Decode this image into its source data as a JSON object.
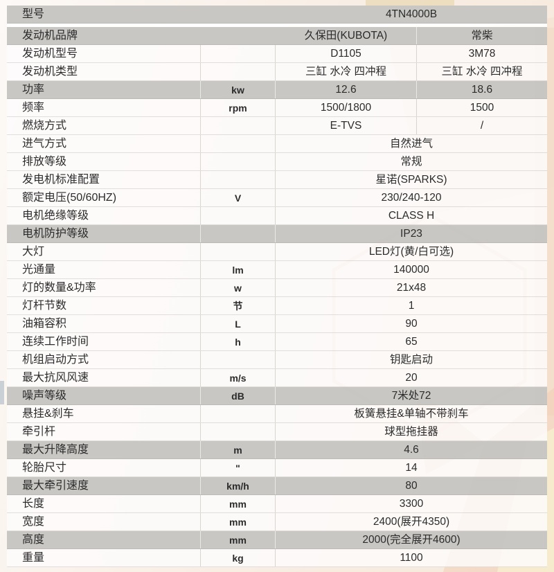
{
  "colors": {
    "shaded_row": "#c6c5c2",
    "row_background": "#fdfcfb",
    "text": "#2b2b2b",
    "page_background": "#f8ecdf",
    "decor_orange": "#e2906a",
    "decor_peach": "#f3cdb4",
    "decor_yellow": "#f8f0d0"
  },
  "table": {
    "rows": [
      {
        "label": "型号",
        "unit": "",
        "value": "4TN4000B",
        "value2": null,
        "shaded": true,
        "no_dividers": true
      },
      {
        "label": "发动机品牌",
        "unit": "",
        "value": "久保田(KUBOTA)",
        "value2": "常柴",
        "shaded": true,
        "no_dividers": true
      },
      {
        "label": "发动机型号",
        "unit": "",
        "value": "D1105",
        "value2": "3M78",
        "shaded": false,
        "no_dividers": false
      },
      {
        "label": "发动机类型",
        "unit": "",
        "value": "三缸 水冷 四冲程",
        "value2": "三缸 水冷 四冲程",
        "shaded": false,
        "no_dividers": false
      },
      {
        "label": "功率",
        "unit": "kw",
        "value": "12.6",
        "value2": "18.6",
        "shaded": true,
        "no_dividers": false
      },
      {
        "label": "频率",
        "unit": "rpm",
        "value": "1500/1800",
        "value2": "1500",
        "shaded": false,
        "no_dividers": false
      },
      {
        "label": "燃烧方式",
        "unit": "",
        "value": "E-TVS",
        "value2": "/",
        "shaded": false,
        "no_dividers": false
      },
      {
        "label": "进气方式",
        "unit": "",
        "value": "自然进气",
        "value2": null,
        "shaded": false,
        "no_dividers": false
      },
      {
        "label": "排放等级",
        "unit": "",
        "value": "常规",
        "value2": null,
        "shaded": false,
        "no_dividers": false
      },
      {
        "label": "发电机标准配置",
        "unit": "",
        "value": "星诺(SPARKS)",
        "value2": null,
        "shaded": false,
        "no_dividers": false
      },
      {
        "label": "额定电压(50/60HZ)",
        "unit": "V",
        "value": "230/240-120",
        "value2": null,
        "shaded": false,
        "no_dividers": false
      },
      {
        "label": "电机绝缘等级",
        "unit": "",
        "value": "CLASS H",
        "value2": null,
        "shaded": false,
        "no_dividers": false
      },
      {
        "label": "电机防护等级",
        "unit": "",
        "value": "IP23",
        "value2": null,
        "shaded": true,
        "no_dividers": false
      },
      {
        "label": "大灯",
        "unit": "",
        "value": "LED灯(黄/白可选)",
        "value2": null,
        "shaded": false,
        "no_dividers": false
      },
      {
        "label": "光通量",
        "unit": "lm",
        "value": "140000",
        "value2": null,
        "shaded": false,
        "no_dividers": false
      },
      {
        "label": "灯的数量&功率",
        "unit": "w",
        "value": "21x48",
        "value2": null,
        "shaded": false,
        "no_dividers": false
      },
      {
        "label": "灯杆节数",
        "unit": "节",
        "value": "1",
        "value2": null,
        "shaded": false,
        "no_dividers": false
      },
      {
        "label": "油箱容积",
        "unit": "L",
        "value": "90",
        "value2": null,
        "shaded": false,
        "no_dividers": false
      },
      {
        "label": "连续工作时间",
        "unit": "h",
        "value": "65",
        "value2": null,
        "shaded": false,
        "no_dividers": false
      },
      {
        "label": "机组启动方式",
        "unit": "",
        "value": "钥匙启动",
        "value2": null,
        "shaded": false,
        "no_dividers": false
      },
      {
        "label": "最大抗风风速",
        "unit": "m/s",
        "value": "20",
        "value2": null,
        "shaded": false,
        "no_dividers": false
      },
      {
        "label": "噪声等级",
        "unit": "dB",
        "value": "7米处72",
        "value2": null,
        "shaded": true,
        "no_dividers": false
      },
      {
        "label": "悬挂&刹车",
        "unit": "",
        "value": "板簧悬挂&单轴不带刹车",
        "value2": null,
        "shaded": false,
        "no_dividers": false
      },
      {
        "label": "牵引杆",
        "unit": "",
        "value": "球型拖挂器",
        "value2": null,
        "shaded": false,
        "no_dividers": false
      },
      {
        "label": "最大升降高度",
        "unit": "m",
        "value": "4.6",
        "value2": null,
        "shaded": true,
        "no_dividers": false
      },
      {
        "label": "轮胎尺寸",
        "unit": "\"",
        "value": "14",
        "value2": null,
        "shaded": false,
        "no_dividers": false
      },
      {
        "label": "最大牵引速度",
        "unit": "km/h",
        "value": "80",
        "value2": null,
        "shaded": true,
        "no_dividers": false
      },
      {
        "label": "长度",
        "unit": "mm",
        "value": "3300",
        "value2": null,
        "shaded": false,
        "no_dividers": false
      },
      {
        "label": "宽度",
        "unit": "mm",
        "value": "2400(展开4350)",
        "value2": null,
        "shaded": false,
        "no_dividers": false
      },
      {
        "label": "高度",
        "unit": "mm",
        "value": "2000(完全展开4600)",
        "value2": null,
        "shaded": true,
        "no_dividers": false
      },
      {
        "label": "重量",
        "unit": "kg",
        "value": "1100",
        "value2": null,
        "shaded": false,
        "no_dividers": false
      }
    ]
  }
}
